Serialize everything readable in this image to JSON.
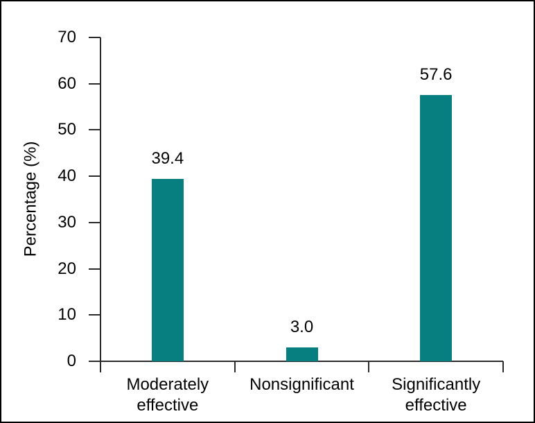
{
  "figure": {
    "background": "#ffffff",
    "border_color": "#000000"
  },
  "chart_data": {
    "type": "bar",
    "categories": [
      "Moderately\neffective",
      "Nonsignificant",
      "Significantly\neffective"
    ],
    "values": [
      39.4,
      3.0,
      57.6
    ],
    "value_labels": [
      "39.4",
      "3.0",
      "57.6"
    ],
    "ylabel": "Percentage (%)",
    "ylim": [
      0,
      70
    ],
    "yticks": [
      0,
      10,
      20,
      30,
      40,
      50,
      60,
      70
    ],
    "ytick_labels": [
      "0",
      "10",
      "20",
      "30",
      "40",
      "50",
      "60",
      "70"
    ],
    "bar_color": "#077f81",
    "axis_color": "#2a2a2a",
    "grid": false,
    "legend": "none"
  }
}
